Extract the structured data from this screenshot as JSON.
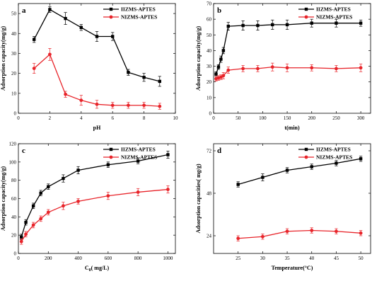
{
  "chart_data": [
    {
      "type": "line",
      "panel_label": "a",
      "xlabel": "pH",
      "ylabel": "Adsorption capacity(mg/g)",
      "xlim": [
        0,
        10
      ],
      "ylim": [
        0,
        55
      ],
      "xticks": [
        0,
        2,
        4,
        6,
        8,
        10
      ],
      "yticks": [
        0,
        10,
        20,
        30,
        40,
        50
      ],
      "legend_position": "top-right",
      "grid": false,
      "series": [
        {
          "name": "IIZMS-APTES",
          "color": "#000000",
          "marker": "square",
          "x": [
            1,
            2,
            3,
            4,
            5,
            6,
            7,
            8,
            9
          ],
          "y": [
            37,
            52,
            47.5,
            43,
            38.5,
            38.5,
            20.5,
            18,
            16
          ],
          "err": [
            1.5,
            1.5,
            3,
            1.5,
            2.5,
            2,
            1.5,
            2,
            2.5
          ]
        },
        {
          "name": "NIZMS-APTES",
          "color": "#e8242a",
          "marker": "circle",
          "x": [
            1,
            2,
            3,
            4,
            5,
            6,
            7,
            8,
            9
          ],
          "y": [
            22.5,
            29.5,
            9.5,
            6.5,
            4.5,
            4,
            4,
            4,
            3.5
          ],
          "err": [
            2.5,
            3,
            1.5,
            2.5,
            2,
            1.5,
            1.5,
            1.5,
            1.5
          ]
        }
      ]
    },
    {
      "type": "line",
      "panel_label": "b",
      "xlabel": "t(min)",
      "ylabel": "Adsorption capacity(mg/g)",
      "xlim": [
        0,
        320
      ],
      "ylim": [
        0,
        70
      ],
      "xticks": [
        0,
        50,
        100,
        150,
        200,
        250,
        300
      ],
      "yticks": [
        0,
        10,
        20,
        30,
        40,
        50,
        60,
        70
      ],
      "legend_position": "top-right",
      "grid": false,
      "series": [
        {
          "name": "IIZMS-APTES",
          "color": "#000000",
          "marker": "square",
          "x": [
            5,
            10,
            15,
            20,
            30,
            60,
            90,
            120,
            150,
            200,
            250,
            300
          ],
          "y": [
            25,
            29.5,
            34.5,
            40,
            55.5,
            56,
            56,
            56.5,
            56.5,
            57.5,
            57.5,
            57.5
          ],
          "err": [
            1.5,
            1.5,
            2,
            2,
            2.5,
            3,
            3,
            3,
            3,
            2.5,
            2.5,
            2
          ]
        },
        {
          "name": "NIZMS-APTES",
          "color": "#e8242a",
          "marker": "circle",
          "x": [
            5,
            10,
            15,
            20,
            30,
            60,
            90,
            120,
            150,
            200,
            250,
            300
          ],
          "y": [
            22,
            22.5,
            23,
            24,
            27.5,
            28.5,
            28.5,
            29.5,
            29,
            29,
            28.5,
            29
          ],
          "err": [
            1.5,
            1.5,
            1.5,
            2,
            2,
            2,
            2,
            2.5,
            2.5,
            2,
            2,
            2.5
          ]
        }
      ]
    },
    {
      "type": "line",
      "panel_label": "c",
      "xlabel": "C",
      "xlabel_sub": "0",
      "xlabel_suffix": "( mg/L)",
      "ylabel": "Adsorption capacity(mg/g)",
      "xlim": [
        0,
        1050
      ],
      "ylim": [
        0,
        120
      ],
      "xticks": [
        0,
        200,
        400,
        600,
        800,
        1000
      ],
      "yticks": [
        0,
        20,
        40,
        60,
        80,
        100,
        120
      ],
      "legend_position": "top-right",
      "grid": false,
      "series": [
        {
          "name": "IIZMS-APTES",
          "color": "#000000",
          "marker": "square",
          "x": [
            20,
            50,
            100,
            150,
            200,
            300,
            400,
            600,
            800,
            1000
          ],
          "y": [
            18,
            34,
            52,
            66,
            73,
            82,
            91,
            97,
            101,
            108
          ],
          "err": [
            3,
            3,
            3,
            3,
            3,
            4,
            4,
            3,
            3,
            4
          ]
        },
        {
          "name": "NIZMS-APTES",
          "color": "#e8242a",
          "marker": "circle",
          "x": [
            20,
            50,
            100,
            150,
            200,
            300,
            400,
            600,
            800,
            1000
          ],
          "y": [
            13,
            21,
            31,
            38,
            45,
            52,
            57,
            63,
            67,
            70
          ],
          "err": [
            3,
            3,
            3,
            3,
            3,
            4,
            3,
            4,
            4,
            4
          ]
        }
      ]
    },
    {
      "type": "line",
      "panel_label": "d",
      "xlabel": "Temperature(°C)",
      "ylabel": "Adsorption capacities( mg/g)",
      "xlim": [
        20,
        52
      ],
      "ylim": [
        14,
        76
      ],
      "xticks": [
        25,
        30,
        35,
        40,
        45,
        50
      ],
      "yticks": [
        24,
        48,
        72
      ],
      "legend_position": "top-right",
      "grid": false,
      "series": [
        {
          "name": "IIZMS-APTES",
          "color": "#000000",
          "marker": "square",
          "x": [
            25,
            30,
            35,
            40,
            45,
            50
          ],
          "y": [
            53,
            57,
            61,
            63,
            65,
            67.5
          ],
          "err": [
            1.5,
            2,
            1.5,
            1.5,
            1.5,
            1.5
          ]
        },
        {
          "name": "NIZMS-APTES",
          "color": "#e8242a",
          "marker": "circle",
          "x": [
            25,
            30,
            35,
            40,
            45,
            50
          ],
          "y": [
            22.5,
            23.5,
            26.5,
            27,
            26.5,
            25.5
          ],
          "err": [
            1.5,
            1.5,
            1.5,
            1.5,
            1.5,
            1.5
          ]
        }
      ]
    }
  ]
}
